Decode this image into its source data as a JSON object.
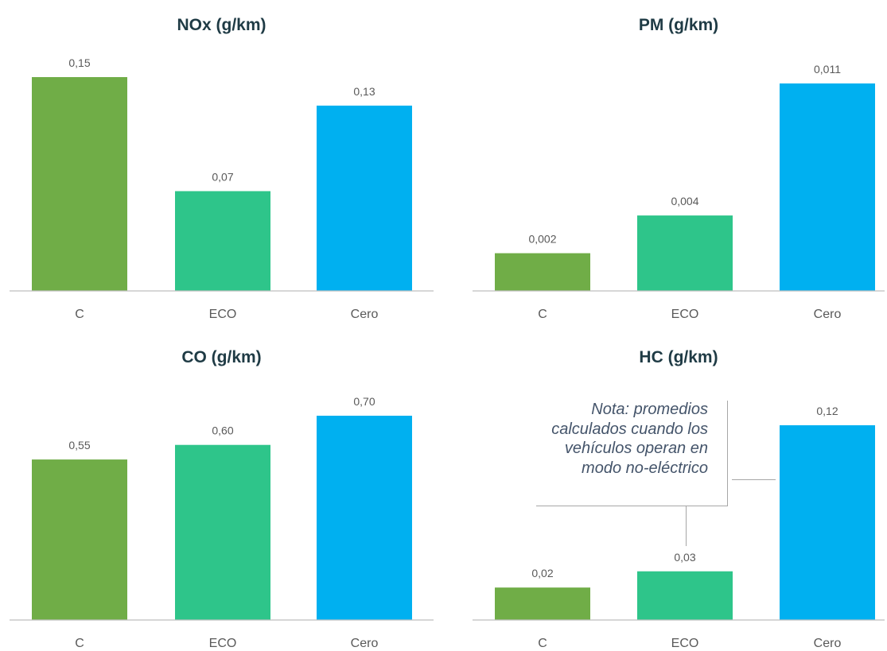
{
  "colors": {
    "C": "#70ad47",
    "ECO": "#2ec58a",
    "Cero": "#00b0f0",
    "axis": "#bfbfbf",
    "title": "#1f3b45",
    "label": "#595959",
    "note": "#44546a"
  },
  "note": {
    "lines": [
      "Nota: promedios",
      "calculados cuando los",
      "vehículos operan en",
      "modo no-eléctrico"
    ]
  },
  "chart_data": [
    {
      "type": "bar",
      "title": "NOx (g/km)",
      "categories": [
        "C",
        "ECO",
        "Cero"
      ],
      "values": [
        0.15,
        0.07,
        0.13
      ],
      "labels": [
        "0,15",
        "0,07",
        "0,13"
      ],
      "ylim": [
        0,
        0.15
      ],
      "grid": false
    },
    {
      "type": "bar",
      "title": "PM (g/km)",
      "categories": [
        "C",
        "ECO",
        "Cero"
      ],
      "values": [
        0.002,
        0.004,
        0.011
      ],
      "labels": [
        "0,002",
        "0,004",
        "0,011"
      ],
      "ylim": [
        0,
        0.011
      ],
      "grid": false
    },
    {
      "type": "bar",
      "title": "CO (g/km)",
      "categories": [
        "C",
        "ECO",
        "Cero"
      ],
      "values": [
        0.55,
        0.6,
        0.7
      ],
      "labels": [
        "0,55",
        "0,60",
        "0,70"
      ],
      "ylim": [
        0,
        0.7
      ],
      "grid": false
    },
    {
      "type": "bar",
      "title": "HC (g/km)",
      "categories": [
        "C",
        "ECO",
        "Cero"
      ],
      "values": [
        0.02,
        0.03,
        0.12
      ],
      "labels": [
        "0,02",
        "0,03",
        "0,12"
      ],
      "ylim": [
        0,
        0.12
      ],
      "grid": false
    }
  ]
}
